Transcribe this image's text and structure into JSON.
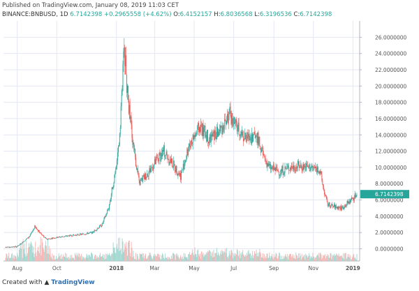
{
  "header": {
    "published": "Published on TradingView.com, January 08, 2019 11:03 CET",
    "symbol": "BINANCE:BNBUSD, 1D",
    "last": "6.7142398",
    "change": "+0.2965558 (+4.62%)",
    "o_label": "O:",
    "o_value": "6.4152157",
    "h_label": "H:",
    "h_value": "6.8036568",
    "l_label": "L:",
    "l_value": "6.3196536",
    "c_label": "C:",
    "c_value": "6.7142398"
  },
  "footer": {
    "created_with": "Created with",
    "brand": "TradingView"
  },
  "colors": {
    "up": "#26a69a",
    "down": "#ef5350",
    "up_volume": "#9ed6cf",
    "down_volume": "#f5b3b1",
    "grid": "#e3e7f2"
  },
  "chart_data": {
    "type": "candlestick",
    "x_tick_labels": [
      "Aug",
      "Oct",
      "2018",
      "Mar",
      "May",
      "Jul",
      "Sep",
      "Nov",
      "2019"
    ],
    "x_tick_dates": [
      "2017-08-01",
      "2017-10-01",
      "2018-01-01",
      "2018-03-01",
      "2018-05-01",
      "2018-07-01",
      "2018-09-01",
      "2018-11-01",
      "2019-01-01"
    ],
    "y_tick_labels": [
      "0.0000000",
      "2.0000000",
      "4.0000000",
      "6.0000000",
      "8.0000000",
      "10.0000000",
      "12.0000000",
      "14.0000000",
      "16.0000000",
      "18.0000000",
      "20.0000000",
      "22.0000000",
      "24.0000000",
      "26.0000000"
    ],
    "ylim": [
      -1.5,
      28
    ],
    "grid": true,
    "last_price_label": "6.7142398",
    "price_path": [
      {
        "date": "2017-07-14",
        "close": 0.2
      },
      {
        "date": "2017-08-01",
        "close": 0.3
      },
      {
        "date": "2017-08-20",
        "close": 1.5
      },
      {
        "date": "2017-08-28",
        "close": 2.7
      },
      {
        "date": "2017-09-05",
        "close": 2.0
      },
      {
        "date": "2017-09-15",
        "close": 1.2
      },
      {
        "date": "2017-10-01",
        "close": 1.4
      },
      {
        "date": "2017-10-20",
        "close": 1.6
      },
      {
        "date": "2017-11-10",
        "close": 1.8
      },
      {
        "date": "2017-11-25",
        "close": 2.0
      },
      {
        "date": "2017-12-10",
        "close": 3.0
      },
      {
        "date": "2017-12-20",
        "close": 5.0
      },
      {
        "date": "2017-12-28",
        "close": 8.5
      },
      {
        "date": "2018-01-05",
        "close": 13.0
      },
      {
        "date": "2018-01-10",
        "close": 20.0
      },
      {
        "date": "2018-01-13",
        "close": 25.0
      },
      {
        "date": "2018-01-18",
        "close": 19.0
      },
      {
        "date": "2018-01-25",
        "close": 14.0
      },
      {
        "date": "2018-02-05",
        "close": 8.0
      },
      {
        "date": "2018-02-20",
        "close": 9.5
      },
      {
        "date": "2018-03-15",
        "close": 12.0
      },
      {
        "date": "2018-04-10",
        "close": 9.0
      },
      {
        "date": "2018-04-25",
        "close": 13.0
      },
      {
        "date": "2018-05-10",
        "close": 15.0
      },
      {
        "date": "2018-05-25",
        "close": 13.5
      },
      {
        "date": "2018-06-10",
        "close": 14.5
      },
      {
        "date": "2018-06-25",
        "close": 16.5
      },
      {
        "date": "2018-07-05",
        "close": 15.0
      },
      {
        "date": "2018-07-20",
        "close": 13.5
      },
      {
        "date": "2018-08-05",
        "close": 14.0
      },
      {
        "date": "2018-08-15",
        "close": 11.5
      },
      {
        "date": "2018-08-25",
        "close": 10.0
      },
      {
        "date": "2018-09-10",
        "close": 9.5
      },
      {
        "date": "2018-09-25",
        "close": 10.0
      },
      {
        "date": "2018-10-10",
        "close": 10.2
      },
      {
        "date": "2018-10-25",
        "close": 10.0
      },
      {
        "date": "2018-11-10",
        "close": 9.8
      },
      {
        "date": "2018-11-15",
        "close": 8.0
      },
      {
        "date": "2018-11-22",
        "close": 5.5
      },
      {
        "date": "2018-12-01",
        "close": 5.2
      },
      {
        "date": "2018-12-15",
        "close": 5.0
      },
      {
        "date": "2018-12-25",
        "close": 5.7
      },
      {
        "date": "2019-01-07",
        "close": 6.71
      }
    ]
  }
}
